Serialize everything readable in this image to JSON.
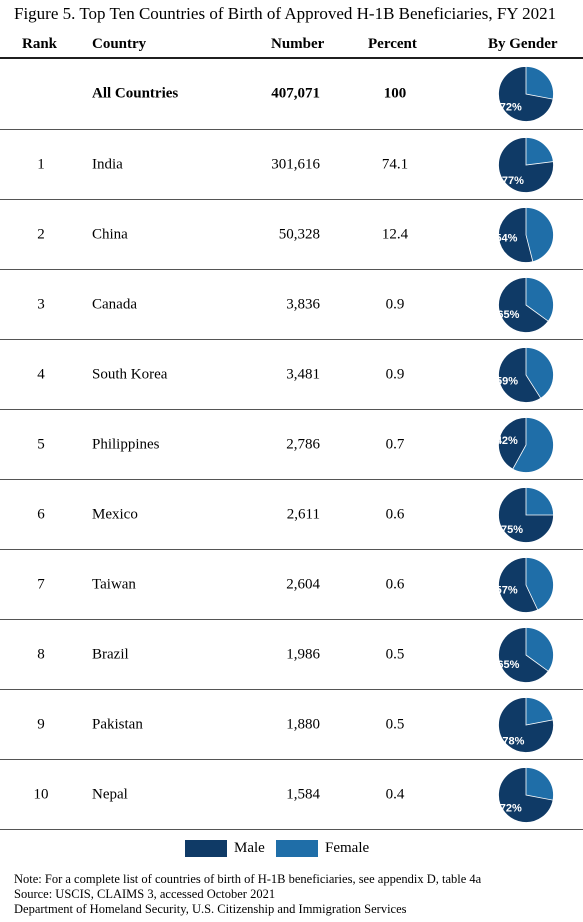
{
  "title": "Figure 5. Top Ten Countries of Birth of Approved H-1B Beneficiaries, FY 2021",
  "headers": {
    "rank": "Rank",
    "country": "Country",
    "number": "Number",
    "percent": "Percent",
    "gender": "By Gender"
  },
  "colors": {
    "male": "#0f3a66",
    "female": "#1f6ea8",
    "rule": "#1f1f1f"
  },
  "rows": [
    {
      "rank": "",
      "country": "All Countries",
      "number": "407,071",
      "percent": "100",
      "male_pct": 72,
      "male_label": "72%",
      "bold": true
    },
    {
      "rank": "1",
      "country": "India",
      "number": "301,616",
      "percent": "74.1",
      "male_pct": 77,
      "male_label": "77%"
    },
    {
      "rank": "2",
      "country": "China",
      "number": "50,328",
      "percent": "12.4",
      "male_pct": 54,
      "male_label": "54%"
    },
    {
      "rank": "3",
      "country": "Canada",
      "number": "3,836",
      "percent": "0.9",
      "male_pct": 65,
      "male_label": "65%"
    },
    {
      "rank": "4",
      "country": "South Korea",
      "number": "3,481",
      "percent": "0.9",
      "male_pct": 59,
      "male_label": "59%"
    },
    {
      "rank": "5",
      "country": "Philippines",
      "number": "2,786",
      "percent": "0.7",
      "male_pct": 42,
      "male_label": "42%"
    },
    {
      "rank": "6",
      "country": "Mexico",
      "number": "2,611",
      "percent": "0.6",
      "male_pct": 75,
      "male_label": "75%"
    },
    {
      "rank": "7",
      "country": "Taiwan",
      "number": "2,604",
      "percent": "0.6",
      "male_pct": 57,
      "male_label": "57%"
    },
    {
      "rank": "8",
      "country": "Brazil",
      "number": "1,986",
      "percent": "0.5",
      "male_pct": 65,
      "male_label": "65%"
    },
    {
      "rank": "9",
      "country": "Pakistan",
      "number": "1,880",
      "percent": "0.5",
      "male_pct": 78,
      "male_label": "78%"
    },
    {
      "rank": "10",
      "country": "Nepal",
      "number": "1,584",
      "percent": "0.4",
      "male_pct": 72,
      "male_label": "72%"
    }
  ],
  "legend": {
    "male": "Male",
    "female": "Female"
  },
  "notes": [
    "Note: For a complete list of countries of birth of H-1B beneficiaries, see appendix D, table 4a",
    "Source: USCIS, CLAIMS 3, accessed October 2021",
    "Department of Homeland Security, U.S. Citizenship and Immigration Services"
  ]
}
